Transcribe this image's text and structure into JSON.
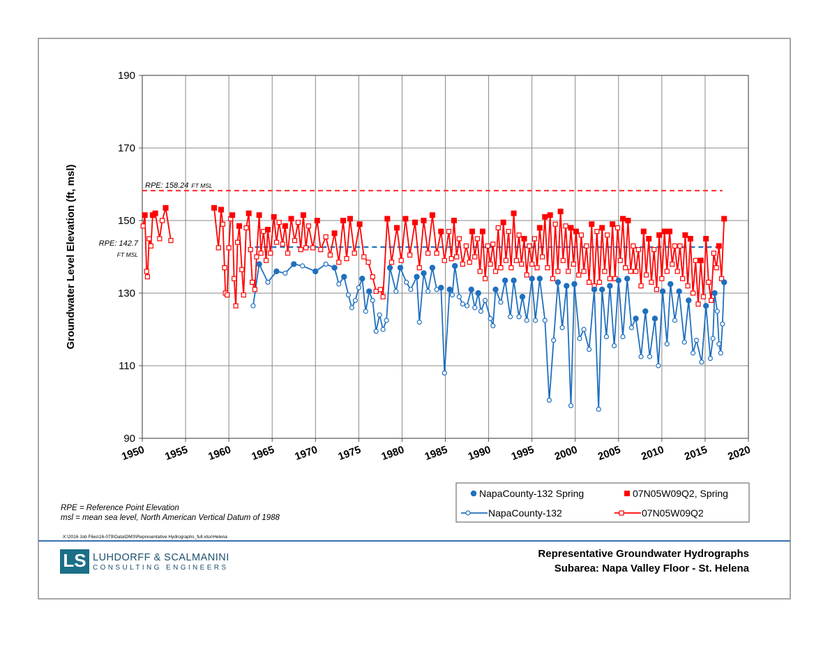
{
  "chart_data": {
    "type": "line",
    "y_label": "Groundwater Level Elevation (ft, msl)",
    "xlim": [
      1950,
      2020
    ],
    "xticks": [
      1950,
      1955,
      1960,
      1965,
      1970,
      1975,
      1980,
      1985,
      1990,
      1995,
      2000,
      2005,
      2010,
      2015,
      2020
    ],
    "ylim": [
      90,
      190
    ],
    "yticks": [
      90,
      110,
      130,
      150,
      170,
      190
    ],
    "grid": true,
    "reference_lines": [
      {
        "label": [
          "RPE: 158.24",
          "FT MSL"
        ],
        "value": 158.24,
        "x": [
          1950,
          2017
        ],
        "color": "#ff3b3b"
      },
      {
        "label": [
          "RPE: 142.7",
          "FT MSL"
        ],
        "value": 142.7,
        "x": [
          1963,
          2017
        ],
        "color": "#1f6fbf"
      }
    ],
    "series": [
      {
        "name": "NapaCounty-132 Spring",
        "color": "#1f6fbf",
        "marker": "circle",
        "filled": true,
        "line": false,
        "x": [
          1963.5,
          1965.5,
          1967.5,
          1970,
          1972.2,
          1973.3,
          1975.4,
          1976.2,
          1978.6,
          1979.8,
          1981.7,
          1982.5,
          1983.5,
          1984.5,
          1985.5,
          1986.1,
          1988,
          1988.8,
          1990.8,
          1991.9,
          1992.9,
          1993.9,
          1995,
          1995.9,
          1998,
          1999,
          1999.9,
          2002.2,
          2003.1,
          2004,
          2005,
          2006,
          2007,
          2008.1,
          2009.2,
          2010.1,
          2011,
          2012,
          2013.1,
          2015.1,
          2016.1,
          2017.2
        ],
        "values": [
          138,
          136,
          138,
          136,
          137,
          134.5,
          134,
          130.5,
          137,
          137,
          134.5,
          135.5,
          137,
          131.5,
          131,
          137.5,
          131,
          130,
          131,
          133.5,
          133.5,
          129,
          134,
          134,
          133,
          132,
          132.5,
          131,
          131,
          132,
          133.5,
          134,
          123,
          125,
          123,
          130.5,
          132.5,
          130.5,
          128,
          126.5,
          130,
          133
        ]
      },
      {
        "name": "07N05W09Q2, Spring",
        "color": "#ff0000",
        "marker": "square",
        "filled": true,
        "line": false,
        "x": [
          1950.3,
          1951.2,
          1951.5,
          1952.7,
          1958.3,
          1959.1,
          1960.4,
          1961.2,
          1962.3,
          1963.5,
          1964.5,
          1965.2,
          1966.5,
          1967.2,
          1968.6,
          1970.2,
          1972.2,
          1973.2,
          1974,
          1975.1,
          1978.3,
          1979.4,
          1980.4,
          1981.5,
          1982.5,
          1983.5,
          1984.5,
          1986,
          1988.1,
          1989.3,
          1991.7,
          1992.9,
          1994.1,
          1995.9,
          1996.5,
          1997.1,
          1998.3,
          1999.5,
          2000.1,
          2001.9,
          2003.1,
          2004.3,
          2005.5,
          2006.1,
          2007.9,
          2008.5,
          2009.7,
          2010.3,
          2010.9,
          2012.7,
          2013.3,
          2014.5,
          2015.1,
          2016.6,
          2017.2
        ],
        "values": [
          151.5,
          151.5,
          152,
          153.5,
          153.5,
          153,
          151.5,
          148.5,
          152,
          151.5,
          147.5,
          151,
          148.5,
          150.5,
          151.5,
          150,
          146.5,
          150,
          150.5,
          149,
          150.5,
          148,
          150.5,
          149.5,
          150,
          151.5,
          147,
          150,
          147,
          147,
          149.5,
          152,
          145,
          148,
          151,
          151.5,
          152.5,
          148,
          147,
          149,
          148,
          149,
          150.5,
          150,
          147,
          145,
          146,
          147,
          147,
          146,
          145,
          139,
          145,
          143,
          150.5
        ]
      },
      {
        "name": "NapaCounty-132",
        "color": "#1f6fbf",
        "marker": "circle",
        "filled": false,
        "line": true,
        "x": [
          1962.8,
          1963.5,
          1964.5,
          1965.5,
          1966.5,
          1967.5,
          1968.5,
          1970,
          1971.2,
          1972.2,
          1972.7,
          1973.3,
          1973.8,
          1974.2,
          1974.6,
          1975,
          1975.4,
          1975.8,
          1976.2,
          1976.6,
          1977,
          1977.4,
          1977.8,
          1978.2,
          1978.6,
          1979.3,
          1979.8,
          1980.5,
          1981,
          1981.7,
          1982,
          1982.5,
          1983,
          1983.5,
          1984,
          1984.5,
          1984.9,
          1985.5,
          1985.8,
          1986.1,
          1986.6,
          1987,
          1987.5,
          1988,
          1988.4,
          1988.8,
          1989.1,
          1989.6,
          1990.2,
          1990.5,
          1990.8,
          1991.4,
          1991.9,
          1992.5,
          1992.9,
          1993.5,
          1993.9,
          1994.4,
          1995,
          1995.4,
          1995.9,
          1996.5,
          1997,
          1997.5,
          1998,
          1998.5,
          1999,
          1999.5,
          1999.9,
          2000.5,
          2001,
          2001.6,
          2002.2,
          2002.7,
          2003.1,
          2003.6,
          2004,
          2004.5,
          2005,
          2005.5,
          2006,
          2006.5,
          2007,
          2007.6,
          2008.1,
          2008.6,
          2009.2,
          2009.6,
          2010.1,
          2010.6,
          2011,
          2011.5,
          2012,
          2012.6,
          2013.1,
          2013.6,
          2014,
          2014.6,
          2015.1,
          2015.6,
          2015.9,
          2016.1,
          2016.4,
          2016.6,
          2016.8,
          2017,
          2017.2
        ],
        "values": [
          126.5,
          138,
          133,
          136,
          135.5,
          138,
          137.5,
          136,
          138,
          137,
          132.5,
          134.5,
          129.5,
          126,
          128,
          131.5,
          134,
          125,
          130.5,
          128,
          119.5,
          124,
          120,
          122.5,
          137,
          130.5,
          137,
          133,
          131,
          134.5,
          122,
          135.5,
          130.5,
          137,
          131,
          131.5,
          108,
          131,
          129.5,
          137.5,
          129,
          127,
          126.5,
          131,
          126,
          130,
          125,
          128,
          123,
          121,
          131,
          127.5,
          133.5,
          123.5,
          133.5,
          123.5,
          129,
          122.5,
          134,
          122.5,
          134,
          122.5,
          100.5,
          117,
          133,
          120.5,
          132,
          99,
          132.5,
          117.5,
          120,
          114.5,
          131,
          98,
          131,
          118,
          132,
          115.5,
          133.5,
          118,
          134,
          120.5,
          123,
          112.5,
          125,
          112.5,
          123,
          110,
          130.5,
          116,
          132.5,
          122.5,
          130.5,
          116.5,
          128,
          113.5,
          117,
          111,
          126.5,
          112,
          117.5,
          130,
          125,
          116,
          113.5,
          121.5,
          133
        ]
      },
      {
        "name": "07N05W09Q2",
        "color": "#ff0000",
        "marker": "square",
        "filled": false,
        "line": true,
        "x": [
          1950.1,
          1950.3,
          1950.5,
          1950.6,
          1950.8,
          1951,
          1951.2,
          1951.5,
          1952,
          1952.3,
          1952.7,
          1953.3,
          1955.5,
          1958.3,
          1958.8,
          1959.1,
          1959.3,
          1959.5,
          1959.6,
          1959.8,
          1960,
          1960.2,
          1960.4,
          1960.6,
          1960.8,
          1961,
          1961.2,
          1961.5,
          1961.7,
          1962,
          1962.3,
          1962.5,
          1962.7,
          1963,
          1963.2,
          1963.5,
          1963.7,
          1964,
          1964.3,
          1964.5,
          1964.8,
          1965.2,
          1965.5,
          1965.8,
          1966.2,
          1966.5,
          1966.8,
          1967.2,
          1967.6,
          1968,
          1968.3,
          1968.6,
          1968.9,
          1969.2,
          1969.7,
          1970.2,
          1970.6,
          1971.2,
          1971.7,
          1972.2,
          1972.7,
          1973.2,
          1973.6,
          1974,
          1974.5,
          1975.1,
          1975.6,
          1976.1,
          1976.6,
          1977,
          1977.5,
          1977.8,
          1978.3,
          1978.8,
          1979.4,
          1979.9,
          1980.4,
          1980.9,
          1981.5,
          1982,
          1982.5,
          1983,
          1983.5,
          1984,
          1984.5,
          1984.9,
          1985.4,
          1985.7,
          1986,
          1986.3,
          1986.6,
          1987,
          1987.4,
          1987.8,
          1988.1,
          1988.4,
          1988.7,
          1989,
          1989.3,
          1989.6,
          1989.9,
          1990.2,
          1990.5,
          1990.8,
          1991.1,
          1991.4,
          1991.7,
          1992,
          1992.3,
          1992.6,
          1992.9,
          1993.2,
          1993.5,
          1993.8,
          1994.1,
          1994.4,
          1994.7,
          1995,
          1995.3,
          1995.6,
          1995.9,
          1996.2,
          1996.5,
          1996.8,
          1997.1,
          1997.4,
          1997.7,
          1998,
          1998.3,
          1998.6,
          1998.9,
          1999.2,
          1999.5,
          1999.8,
          2000.1,
          2000.4,
          2000.7,
          2001,
          2001.3,
          2001.6,
          2001.9,
          2002.2,
          2002.5,
          2002.8,
          2003.1,
          2003.4,
          2003.7,
          2004,
          2004.3,
          2004.6,
          2004.9,
          2005.2,
          2005.5,
          2005.8,
          2006.1,
          2006.4,
          2006.7,
          2007,
          2007.3,
          2007.6,
          2007.9,
          2008.2,
          2008.5,
          2008.8,
          2009.1,
          2009.4,
          2009.7,
          2010,
          2010.3,
          2010.6,
          2010.9,
          2011.2,
          2011.5,
          2011.8,
          2012.1,
          2012.4,
          2012.7,
          2013,
          2013.3,
          2013.6,
          2013.9,
          2014.2,
          2014.5,
          2014.8,
          2015.1,
          2015.4,
          2015.7,
          2016,
          2016.3,
          2016.6,
          2016.9,
          2017.2
        ],
        "values": [
          148.5,
          151.5,
          136,
          134.5,
          145,
          143,
          151.5,
          152,
          145,
          150,
          153.5,
          144.5,
          null,
          153.5,
          142.5,
          153,
          149,
          137,
          130,
          129.5,
          142.5,
          150.5,
          151.5,
          134,
          126.5,
          144,
          148.5,
          136.5,
          129.5,
          148,
          152,
          142,
          133,
          131,
          140,
          151.5,
          141,
          147,
          139,
          147.5,
          141,
          151,
          144,
          149.5,
          143.5,
          148.5,
          141,
          150.5,
          144.5,
          149.5,
          142,
          151.5,
          142.5,
          148.5,
          142.5,
          150,
          142,
          145.5,
          140.5,
          146.5,
          138.5,
          150,
          139.5,
          150.5,
          141,
          149,
          140,
          138.5,
          134.5,
          130.5,
          131,
          129,
          150.5,
          138.5,
          148,
          139,
          150.5,
          140.5,
          149.5,
          137,
          150,
          141,
          151.5,
          141,
          147,
          139,
          147,
          139.5,
          150,
          140,
          145,
          138,
          143,
          138.5,
          147,
          140,
          145,
          136,
          147,
          134,
          143,
          138,
          143.5,
          136,
          148,
          137,
          149.5,
          139,
          147,
          137,
          152,
          139,
          146,
          138,
          145,
          135,
          143,
          138,
          145,
          137,
          148,
          140,
          151,
          137,
          151.5,
          134,
          149,
          136,
          152.5,
          139,
          148.5,
          136,
          148,
          138,
          147,
          135,
          146,
          136,
          143,
          133,
          149,
          132,
          147,
          133,
          148,
          136,
          146,
          134,
          149,
          134,
          148,
          139,
          150.5,
          137,
          150,
          136,
          143,
          136,
          142,
          132,
          147,
          135,
          145,
          133,
          142,
          131,
          146,
          134,
          147,
          136,
          147,
          138,
          143,
          136,
          143,
          134,
          146,
          132,
          145,
          130,
          139,
          127,
          139,
          129,
          145,
          133,
          128,
          141,
          137,
          143,
          134,
          150.5
        ]
      }
    ],
    "notes": [
      "RPE = Reference Point Elevation",
      "msl = mean sea level, North American Vertical Datum of 1988"
    ],
    "file_path": "X:\\2016 Job Files\\16-079\\Data\\DMS\\Representative Hydrographs_full.xlsx\\Helena"
  },
  "footer": {
    "logo_mark": "LS",
    "company": "LUHDORFF & SCALMANINI",
    "company_sub": "CONSULTING ENGINEERS",
    "title": "Representative Groundwater Hydrographs",
    "subtitle": "Subarea: Napa Valley Floor - St. Helena"
  }
}
